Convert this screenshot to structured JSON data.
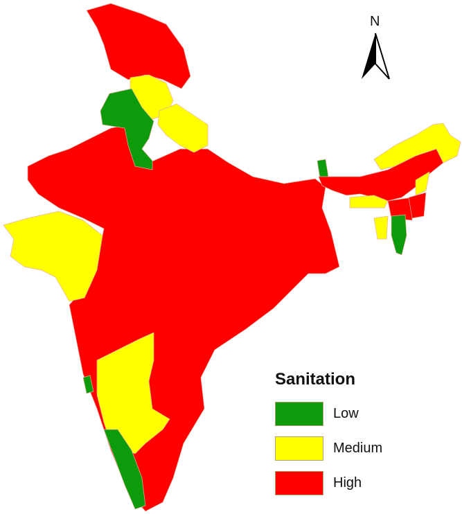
{
  "map": {
    "north_label": "N",
    "colors": {
      "low": "#0b9b0b",
      "medium": "#ffff00",
      "high": "#ff0000"
    }
  },
  "legend": {
    "title": "Sanitation",
    "items": [
      {
        "label": "Low",
        "color": "#0b9b0b"
      },
      {
        "label": "Medium",
        "color": "#ffff00"
      },
      {
        "label": "High",
        "color": "#ff0000"
      }
    ]
  }
}
